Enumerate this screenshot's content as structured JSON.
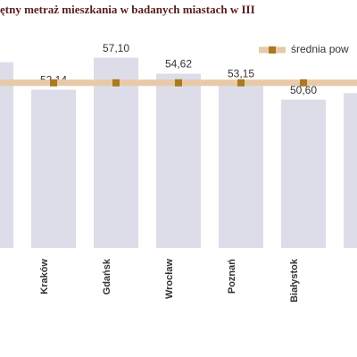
{
  "chart_data": {
    "type": "bar",
    "title": "ętny metraż mieszkania w badanych miastach w III",
    "categories": [
      null,
      "Kraków",
      "Gdańsk",
      "Wrocław",
      "Poznań",
      "Białystok",
      null
    ],
    "values": [
      56.4,
      52.14,
      57.1,
      54.62,
      53.15,
      50.6,
      51.6
    ],
    "value_labels": [
      null,
      "52,14",
      "57,10",
      "54,62",
      "53,15",
      "50,60",
      null
    ],
    "color": "#dcdde9",
    "ylim": [
      27.6,
      60.5
    ],
    "series": [
      {
        "name": "średnia pow",
        "color": "#e8c9a8",
        "marker_color": "#a87a22",
        "values": [
          53.2,
          53.2,
          53.2,
          53.2,
          53.2,
          53.2,
          53.2
        ]
      }
    ]
  }
}
